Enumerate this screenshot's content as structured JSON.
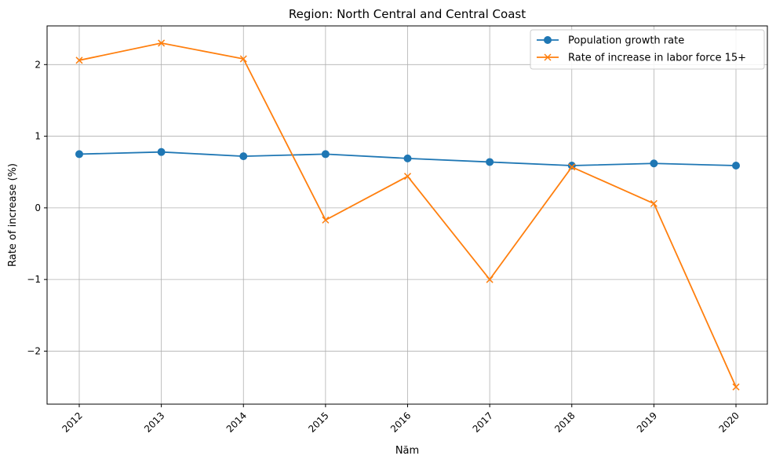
{
  "chart_data": {
    "type": "line",
    "title": "Region: North Central and Central Coast",
    "xlabel": "Năm",
    "ylabel": "Rate of increase (%)",
    "x": [
      "2012",
      "2013",
      "2014",
      "2015",
      "2016",
      "2017",
      "2018",
      "2019",
      "2020"
    ],
    "ylim": [
      -2.74,
      2.54
    ],
    "yticks": [
      -2,
      -1,
      0,
      1,
      2
    ],
    "ytick_labels": [
      "−2",
      "−1",
      "0",
      "1",
      "2"
    ],
    "grid": true,
    "legend_position": "top-right",
    "series": [
      {
        "name": "Population growth rate",
        "color": "#1f77b4",
        "marker": "circle",
        "values": [
          0.75,
          0.78,
          0.72,
          0.75,
          0.69,
          0.64,
          0.59,
          0.62,
          0.59
        ]
      },
      {
        "name": "Rate of increase in labor force 15+",
        "color": "#ff7f0e",
        "marker": "x",
        "values": [
          2.06,
          2.3,
          2.08,
          -0.17,
          0.44,
          -1.0,
          0.57,
          0.06,
          -2.5
        ]
      }
    ]
  }
}
